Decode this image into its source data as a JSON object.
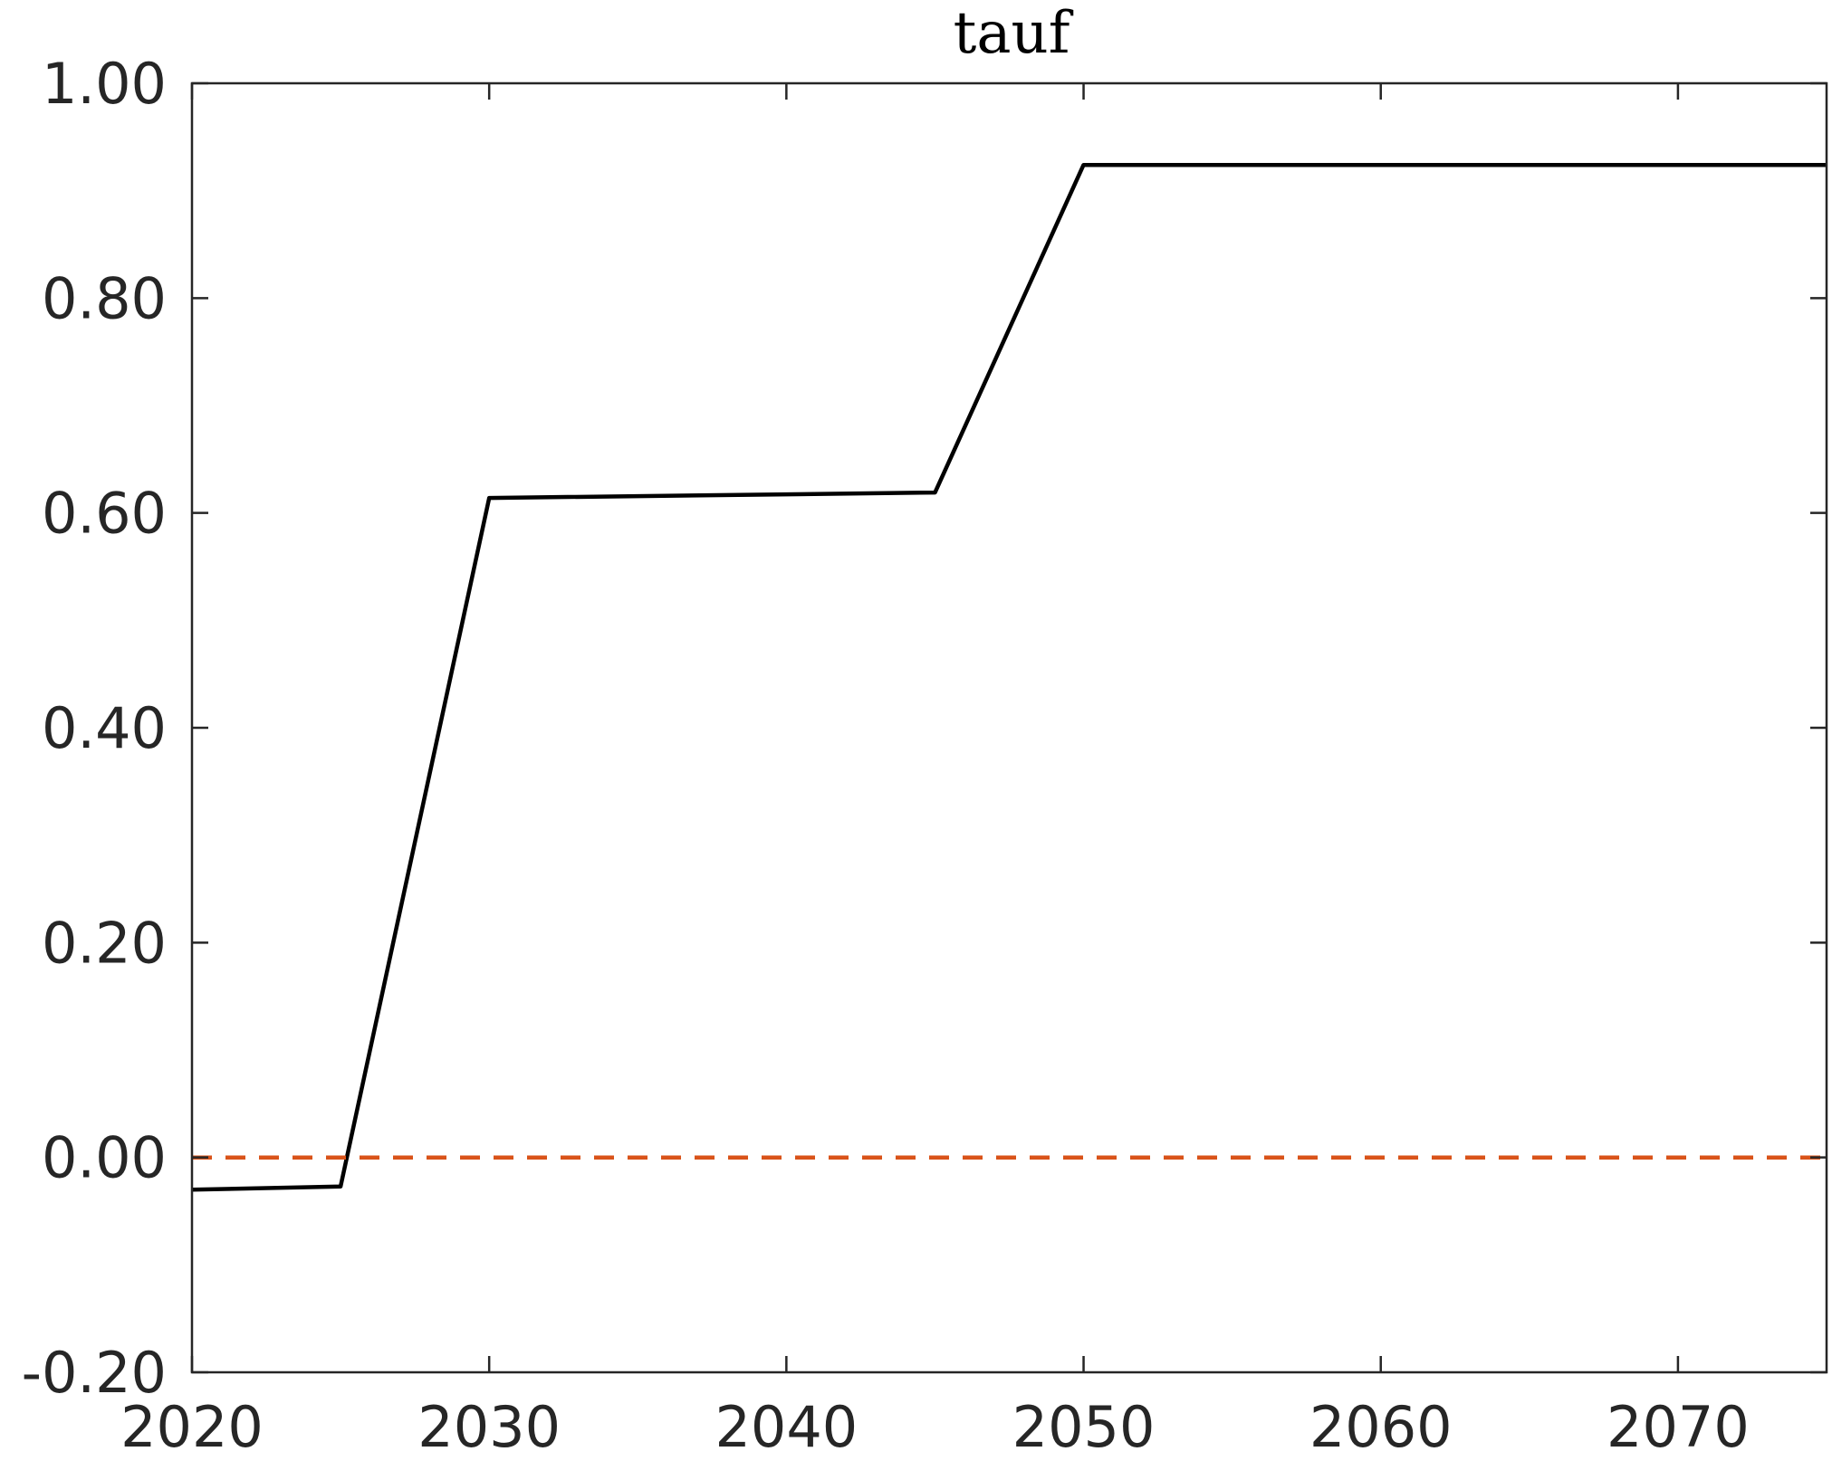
{
  "chart_data": {
    "type": "line",
    "title": "tauf",
    "xlabel": "",
    "ylabel": "",
    "xlim": [
      2020,
      2075
    ],
    "ylim": [
      -0.2,
      1.0
    ],
    "x_ticks": [
      2020,
      2030,
      2040,
      2050,
      2060,
      2070
    ],
    "x_tick_labels": [
      "2020",
      "2030",
      "2040",
      "2050",
      "2060",
      "2070"
    ],
    "y_ticks": [
      -0.2,
      0.0,
      0.2,
      0.4,
      0.6,
      0.8,
      1.0
    ],
    "y_tick_labels": [
      "-0.20",
      "0.00",
      "0.20",
      "0.40",
      "0.60",
      "0.80",
      "1.00"
    ],
    "grid": false,
    "series": [
      {
        "color": "#000000",
        "style": "solid",
        "x": [
          2020,
          2025,
          2030,
          2045,
          2050,
          2075
        ],
        "y": [
          -0.03,
          -0.027,
          0.614,
          0.619,
          0.924,
          0.924
        ]
      },
      {
        "color": "#D95319",
        "style": "dashed",
        "x": [
          2020,
          2075
        ],
        "y": [
          0.0,
          0.0
        ]
      }
    ]
  }
}
